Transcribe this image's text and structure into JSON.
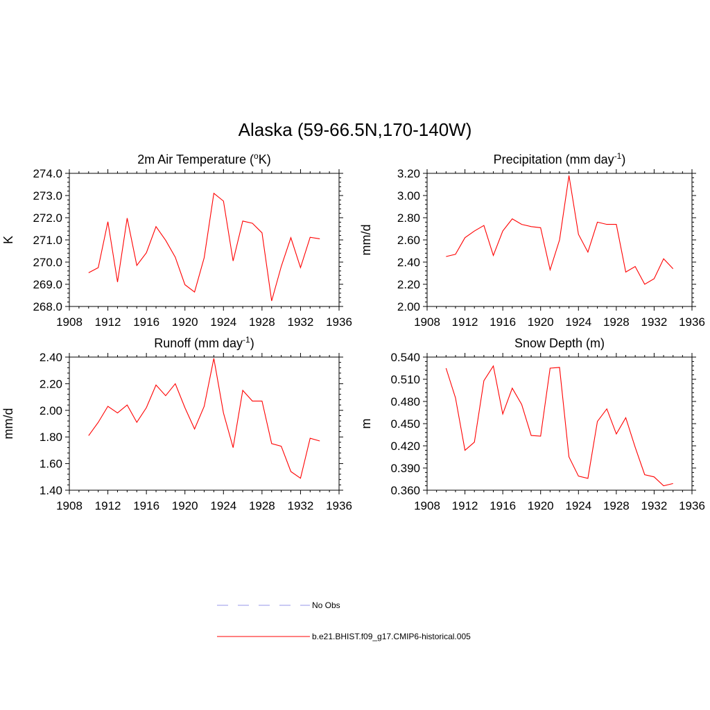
{
  "title": "Alaska (59-66.5N,170-140W)",
  "chart_data": [
    {
      "type": "line",
      "title": "2m Air Temperature (",
      "title_sup": "o",
      "title_after": "K)",
      "ylabel": "K",
      "xlabel": "",
      "xlim": [
        1908,
        1936
      ],
      "ylim": [
        268.0,
        274.0
      ],
      "yticks": [
        "268.0",
        "269.0",
        "270.0",
        "271.0",
        "272.0",
        "273.0",
        "274.0"
      ],
      "xticks": [
        "1908",
        "1912",
        "1916",
        "1920",
        "1924",
        "1928",
        "1932",
        "1936"
      ],
      "x": [
        1910,
        1911,
        1912,
        1913,
        1914,
        1915,
        1916,
        1917,
        1918,
        1919,
        1920,
        1921,
        1922,
        1923,
        1924,
        1925,
        1926,
        1927,
        1928,
        1929,
        1930,
        1931,
        1932,
        1933,
        1934
      ],
      "series": [
        {
          "name": "b.e21.BHIST.f09_g17.CMIP6-historical.005",
          "values": [
            269.52,
            269.75,
            271.82,
            269.1,
            271.98,
            269.85,
            270.42,
            271.6,
            270.98,
            270.22,
            268.98,
            268.65,
            270.2,
            273.1,
            272.75,
            270.05,
            271.85,
            271.75,
            271.32,
            268.25,
            269.8,
            271.1,
            269.75,
            271.12,
            271.05
          ]
        }
      ]
    },
    {
      "type": "line",
      "title": "Precipitation (mm day",
      "title_sup": "-1",
      "title_after": ")",
      "ylabel": "mm/d",
      "xlabel": "",
      "xlim": [
        1908,
        1936
      ],
      "ylim": [
        2.0,
        3.2
      ],
      "yticks": [
        "2.00",
        "2.20",
        "2.40",
        "2.60",
        "2.80",
        "3.00",
        "3.20"
      ],
      "xticks": [
        "1908",
        "1912",
        "1916",
        "1920",
        "1924",
        "1928",
        "1932",
        "1936"
      ],
      "x": [
        1910,
        1911,
        1912,
        1913,
        1914,
        1915,
        1916,
        1917,
        1918,
        1919,
        1920,
        1921,
        1922,
        1923,
        1924,
        1925,
        1926,
        1927,
        1928,
        1929,
        1930,
        1931,
        1932,
        1933,
        1934
      ],
      "series": [
        {
          "name": "b.e21.BHIST.f09_g17.CMIP6-historical.005",
          "values": [
            2.45,
            2.47,
            2.62,
            2.68,
            2.73,
            2.46,
            2.68,
            2.79,
            2.74,
            2.72,
            2.71,
            2.33,
            2.6,
            3.18,
            2.65,
            2.49,
            2.76,
            2.74,
            2.74,
            2.31,
            2.36,
            2.2,
            2.25,
            2.43,
            2.34
          ]
        }
      ]
    },
    {
      "type": "line",
      "title": "Runoff (mm day",
      "title_sup": "-1",
      "title_after": ")",
      "ylabel": "mm/d",
      "xlabel": "",
      "xlim": [
        1908,
        1936
      ],
      "ylim": [
        1.4,
        2.4
      ],
      "yticks": [
        "1.40",
        "1.60",
        "1.80",
        "2.00",
        "2.20",
        "2.40"
      ],
      "xticks": [
        "1908",
        "1912",
        "1916",
        "1920",
        "1924",
        "1928",
        "1932",
        "1936"
      ],
      "x": [
        1910,
        1911,
        1912,
        1913,
        1914,
        1915,
        1916,
        1917,
        1918,
        1919,
        1920,
        1921,
        1922,
        1923,
        1924,
        1925,
        1926,
        1927,
        1928,
        1929,
        1930,
        1931,
        1932,
        1933,
        1934
      ],
      "series": [
        {
          "name": "b.e21.BHIST.f09_g17.CMIP6-historical.005",
          "values": [
            1.81,
            1.91,
            2.03,
            1.98,
            2.04,
            1.91,
            2.02,
            2.19,
            2.11,
            2.2,
            2.02,
            1.86,
            2.03,
            2.39,
            1.98,
            1.72,
            2.15,
            2.07,
            2.07,
            1.75,
            1.73,
            1.54,
            1.49,
            1.79,
            1.77
          ]
        }
      ]
    },
    {
      "type": "line",
      "title": "Snow Depth (m)",
      "title_sup": "",
      "title_after": "",
      "ylabel": "m",
      "xlabel": "",
      "xlim": [
        1908,
        1936
      ],
      "ylim": [
        0.36,
        0.54
      ],
      "yticks": [
        "0.360",
        "0.390",
        "0.420",
        "0.450",
        "0.480",
        "0.510",
        "0.540"
      ],
      "xticks": [
        "1908",
        "1912",
        "1916",
        "1920",
        "1924",
        "1928",
        "1932",
        "1936"
      ],
      "x": [
        1910,
        1911,
        1912,
        1913,
        1914,
        1915,
        1916,
        1917,
        1918,
        1919,
        1920,
        1921,
        1922,
        1923,
        1924,
        1925,
        1926,
        1927,
        1928,
        1929,
        1930,
        1931,
        1932,
        1933,
        1934
      ],
      "series": [
        {
          "name": "b.e21.BHIST.f09_g17.CMIP6-historical.005",
          "values": [
            0.525,
            0.485,
            0.414,
            0.425,
            0.508,
            0.528,
            0.463,
            0.498,
            0.476,
            0.434,
            0.433,
            0.525,
            0.526,
            0.405,
            0.379,
            0.376,
            0.453,
            0.47,
            0.436,
            0.458,
            0.418,
            0.381,
            0.378,
            0.366,
            0.369
          ]
        }
      ]
    }
  ],
  "legend": {
    "items": [
      {
        "label": "No Obs",
        "color": "#aaaaee",
        "style": "dashed"
      },
      {
        "label": "b.e21.BHIST.f09_g17.CMIP6-historical.005",
        "color": "#ff0000",
        "style": "solid"
      }
    ]
  },
  "colors": {
    "series": "#ff0000",
    "axis": "#000000",
    "obs": "#aaaaee"
  }
}
